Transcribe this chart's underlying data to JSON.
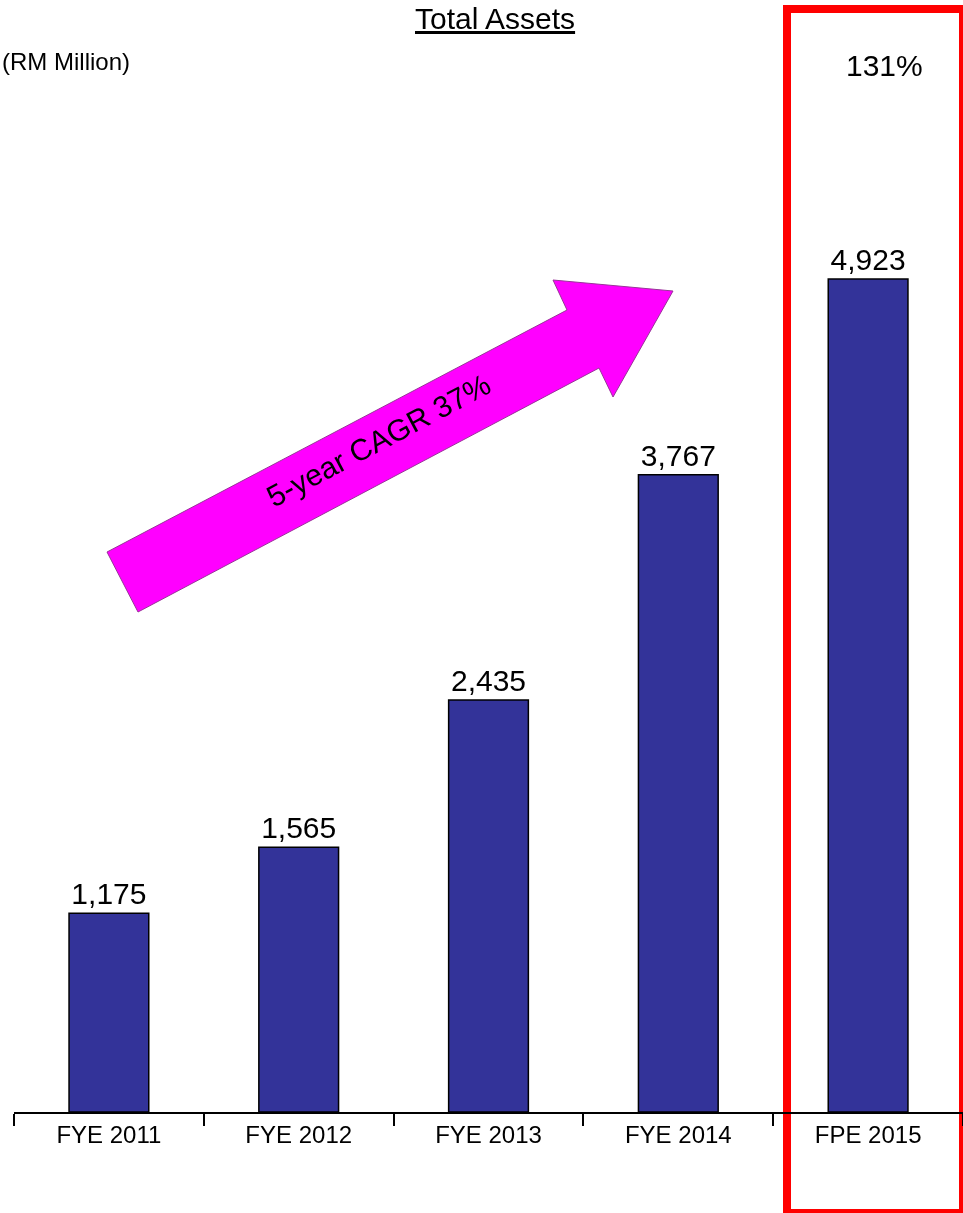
{
  "chart_data": {
    "type": "bar",
    "title": "Total Assets",
    "categories": [
      "FYE 2011",
      "FYE 2012",
      "FYE 2013",
      "FYE 2014",
      "FPE 2015"
    ],
    "values": [
      1175,
      1565,
      2435,
      3767,
      4923
    ],
    "color": "#333399",
    "value_labels": [
      "1,175",
      "1,565",
      "2,435",
      "3,767",
      "4,923"
    ],
    "grid": false,
    "legend": false,
    "annotations": [
      "(RM Million)",
      "131%",
      "5-year CAGR 37%"
    ]
  }
}
